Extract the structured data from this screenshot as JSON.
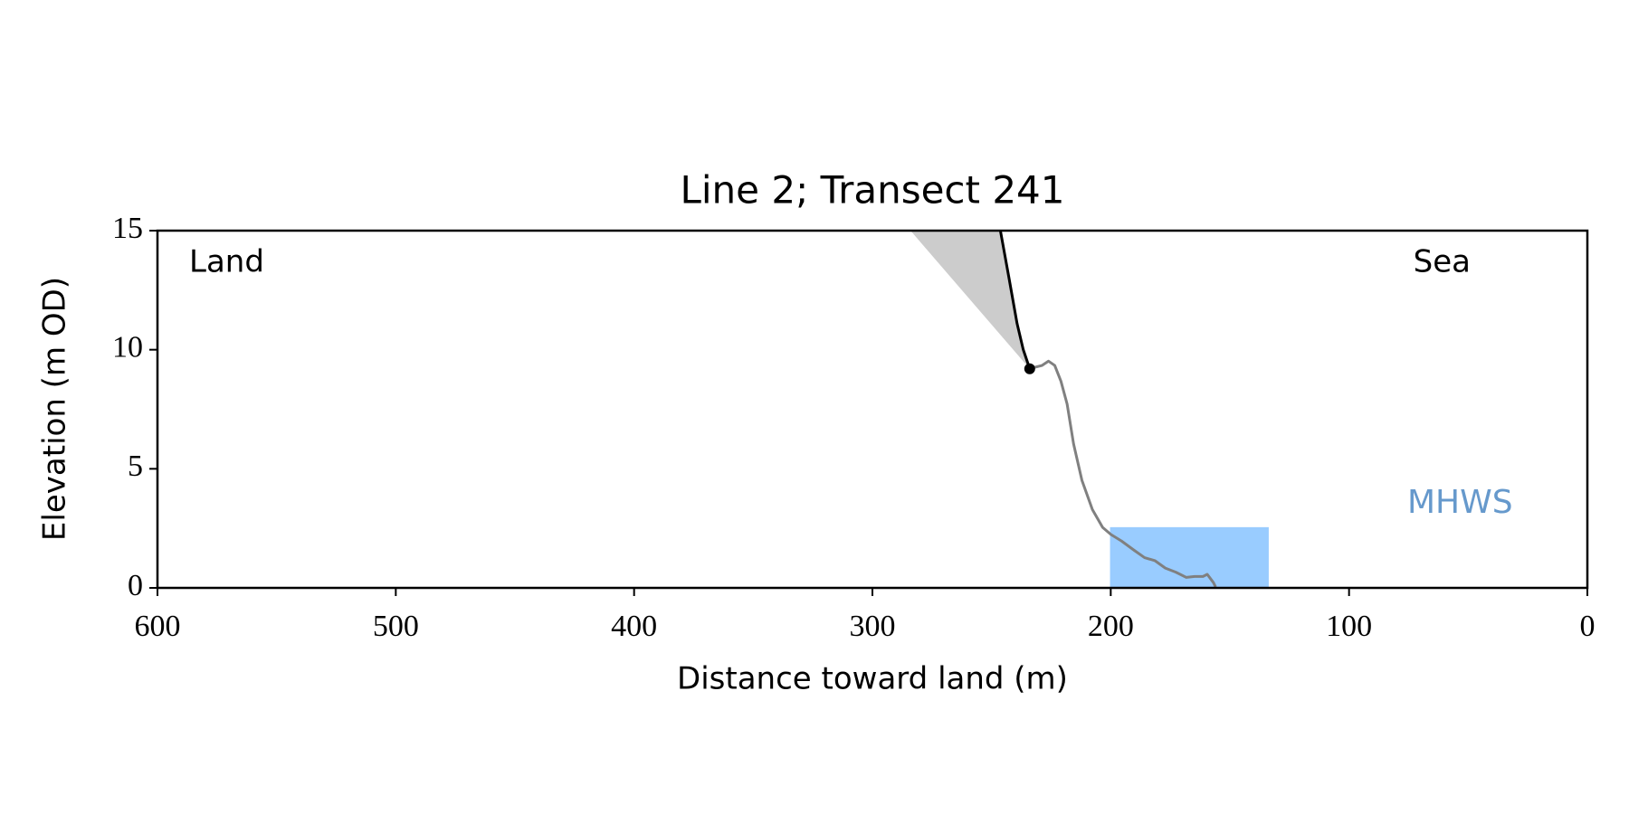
{
  "chart_data": {
    "type": "line",
    "title": "Line 2; Transect 241",
    "xlabel": "Distance toward land (m)",
    "ylabel": "Elevation (m OD)",
    "xlim": [
      600,
      0
    ],
    "ylim": [
      0,
      15
    ],
    "xticks": [
      600,
      500,
      400,
      300,
      200,
      100,
      0
    ],
    "yticks": [
      0,
      5,
      10,
      15
    ],
    "annotations": [
      "Land",
      "Sea"
    ],
    "mhws": {
      "label": "MHWS",
      "level": 2.55,
      "x": [
        200.3,
        133.7
      ],
      "color": "#99ccff",
      "label_color": "#6699cc"
    },
    "series": [
      {
        "kind": "fill",
        "color": "#cccccc",
        "x": [
          284.0,
          246.3,
          242.8,
          239.3,
          236.7,
          234.0
        ],
        "y": [
          15,
          15,
          13.07,
          11.1,
          10.0,
          9.2
        ]
      },
      {
        "kind": "line",
        "color": "#808080",
        "x": [
          234.0,
          228.8,
          226.1,
          223.5,
          220.9,
          218.3,
          215.6,
          212.1,
          207.7,
          203.4,
          199.9,
          195.5,
          190.2,
          185.8,
          181.4,
          177.1,
          172.7,
          168.3,
          164.8,
          161.3,
          159.5,
          156.9,
          156.0
        ],
        "y": [
          9.21,
          9.34,
          9.52,
          9.34,
          8.68,
          7.72,
          6.05,
          4.52,
          3.29,
          2.54,
          2.24,
          1.97,
          1.58,
          1.27,
          1.14,
          0.83,
          0.66,
          0.44,
          0.48,
          0.48,
          0.57,
          0.22,
          0.04
        ]
      },
      {
        "kind": "line",
        "color": "#000000",
        "x": [
          246.3,
          242.8,
          239.3,
          236.7,
          234.0
        ],
        "y": [
          15,
          13.07,
          11.1,
          10.0,
          9.2
        ]
      },
      {
        "kind": "point",
        "color": "#000000",
        "x": [
          234.0
        ],
        "y": [
          9.2
        ]
      }
    ]
  }
}
